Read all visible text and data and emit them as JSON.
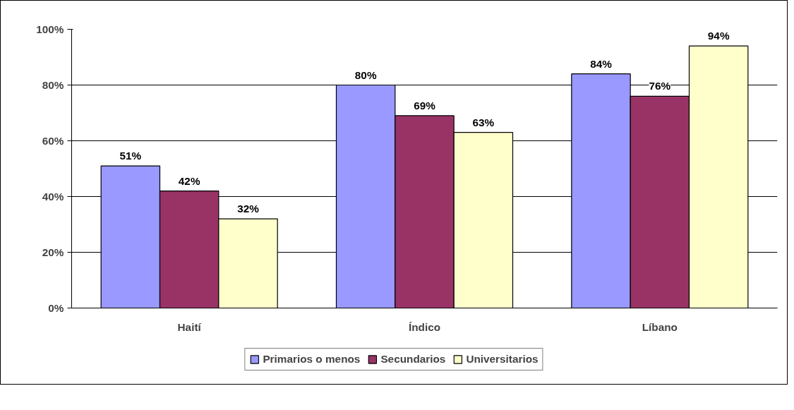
{
  "chart_data": {
    "type": "bar",
    "categories": [
      "Haití",
      "Índico",
      "Líbano"
    ],
    "series": [
      {
        "name": "Primarios o menos",
        "color": "#9999ff",
        "values": [
          51,
          80,
          84
        ],
        "value_labels": [
          "51%",
          "80%",
          "84%"
        ]
      },
      {
        "name": "Secundarios",
        "color": "#993366",
        "values": [
          42,
          69,
          76
        ],
        "value_labels": [
          "42%",
          "69%",
          "76%"
        ]
      },
      {
        "name": "Universitarios",
        "color": "#ffffcc",
        "values": [
          32,
          63,
          94
        ],
        "value_labels": [
          "32%",
          "63%",
          "94%"
        ]
      }
    ],
    "ylim": [
      0,
      100
    ],
    "yticks": [
      {
        "value": 0,
        "label": "0%"
      },
      {
        "value": 20,
        "label": "20%"
      },
      {
        "value": 40,
        "label": "40%"
      },
      {
        "value": 60,
        "label": "60%"
      },
      {
        "value": 80,
        "label": "80%"
      },
      {
        "value": 100,
        "label": "100%"
      }
    ],
    "grid": "y",
    "legend": "bottom"
  }
}
